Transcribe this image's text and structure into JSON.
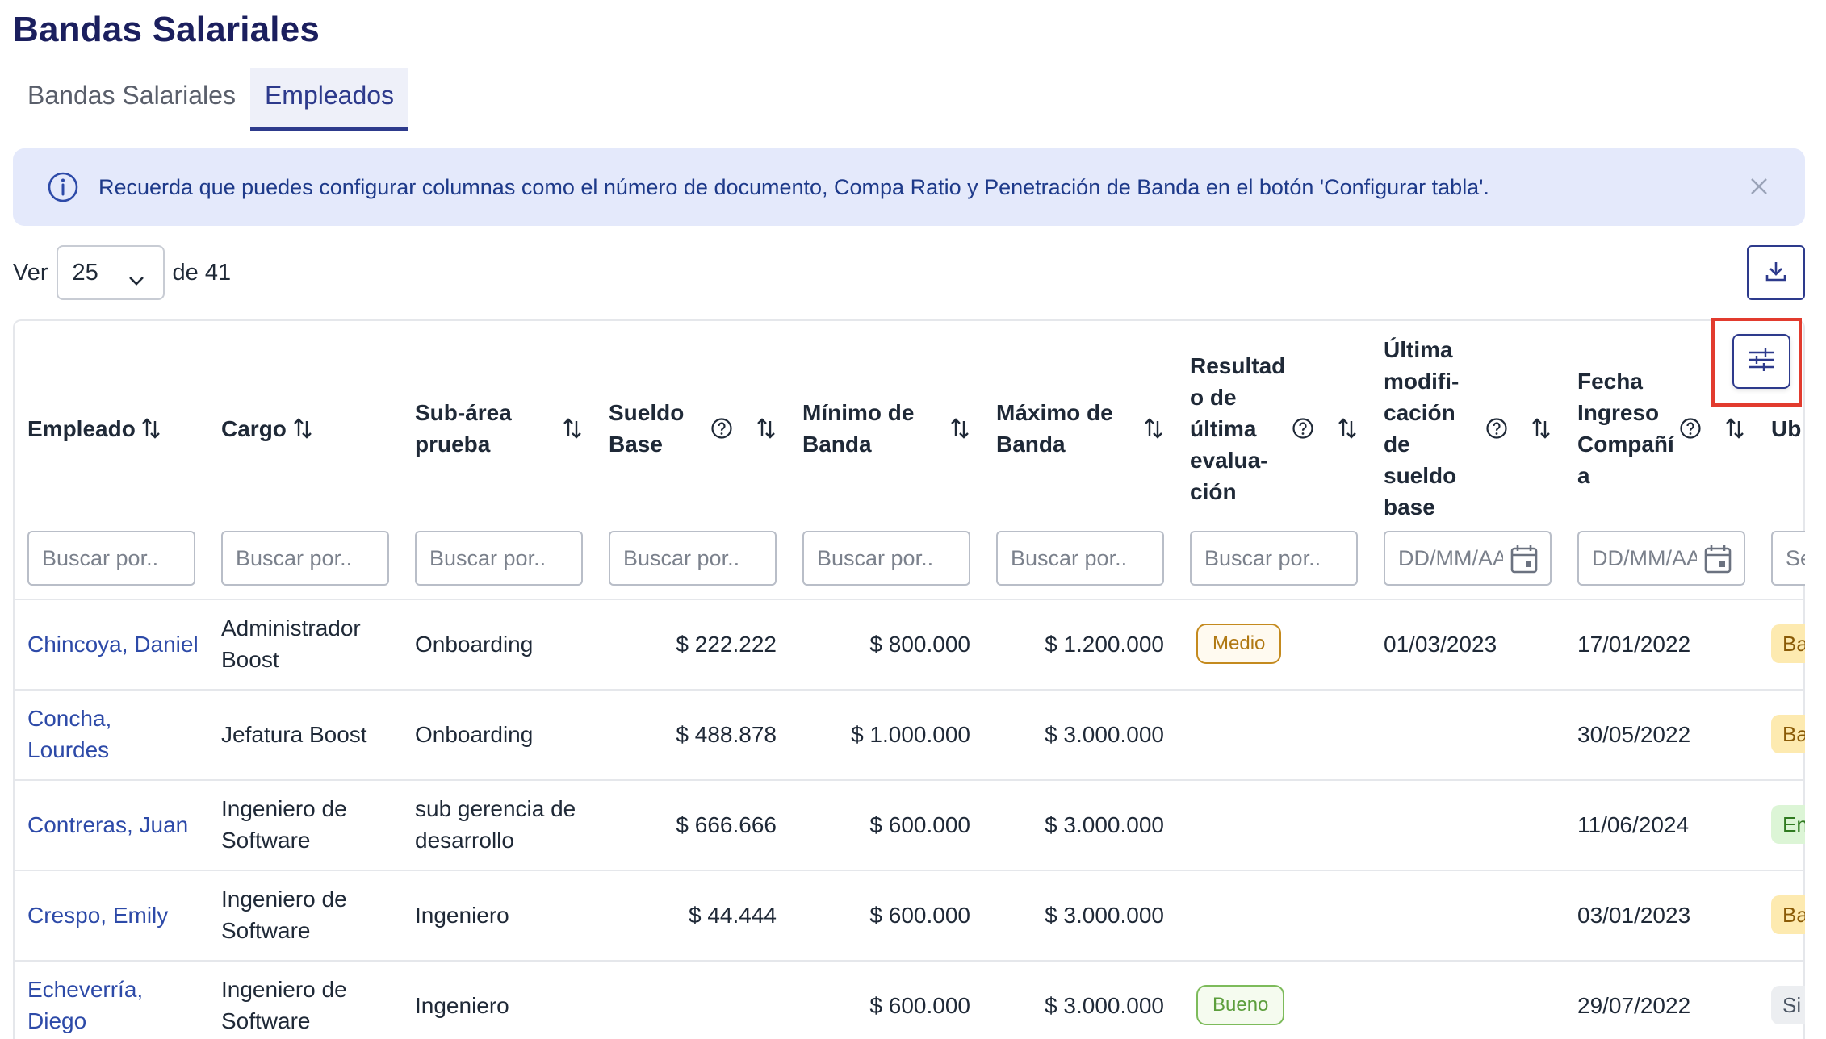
{
  "page": {
    "title": "Bandas Salariales"
  },
  "tabs": [
    {
      "label": "Bandas Salariales",
      "active": false
    },
    {
      "label": "Empleados",
      "active": true
    }
  ],
  "alert": {
    "text": "Recuerda que puedes configurar columnas como el número de documento, Compa Ratio y Penetración de Banda en el botón 'Configurar tabla'.",
    "icon": "info-icon"
  },
  "pager": {
    "prefix": "Ver",
    "page_size": "25",
    "suffix": "de 41"
  },
  "columns": [
    {
      "label_lines": [
        "Empleado"
      ]
    },
    {
      "label_lines": [
        "Cargo"
      ]
    },
    {
      "label_lines": [
        "Sub-área",
        "prueba"
      ]
    },
    {
      "label_lines": [
        "Sueldo",
        "Base"
      ]
    },
    {
      "label_lines": [
        "Mínimo de",
        "Banda"
      ]
    },
    {
      "label_lines": [
        "Máximo de",
        "Banda"
      ]
    },
    {
      "label_lines": [
        "Resultad",
        "o de",
        "última",
        "evalua-",
        "ción"
      ]
    },
    {
      "label_lines": [
        "Última",
        "modifi-",
        "cación",
        "de",
        "sueldo",
        "base"
      ]
    },
    {
      "label_lines": [
        "Fecha",
        "Ingreso",
        "Compañí",
        "a"
      ]
    },
    {
      "label_lines": [
        "Ubi"
      ]
    }
  ],
  "filters": {
    "text_placeholder": "Buscar por..",
    "date_placeholder": "DD/MM/AAAA",
    "last_placeholder": "Se"
  },
  "rows": [
    {
      "empleado": [
        "Chincoya, Daniel"
      ],
      "cargo": [
        "Administrador",
        "Boost"
      ],
      "subarea": [
        "Onboarding"
      ],
      "sueldo": "$ 222.222",
      "minimo": "$ 800.000",
      "maximo": "$ 1.200.000",
      "resultado": "Medio",
      "ultima_mod": "01/03/2023",
      "fecha_ingreso": "17/01/2022",
      "ubi": "Ba",
      "ubi_color": "amber"
    },
    {
      "empleado": [
        "Concha,",
        "Lourdes"
      ],
      "cargo": [
        "Jefatura Boost"
      ],
      "subarea": [
        "Onboarding"
      ],
      "sueldo": "$ 488.878",
      "minimo": "$ 1.000.000",
      "maximo": "$ 3.000.000",
      "resultado": "",
      "ultima_mod": "",
      "fecha_ingreso": "30/05/2022",
      "ubi": "Ba",
      "ubi_color": "amber"
    },
    {
      "empleado": [
        "Contreras, Juan"
      ],
      "cargo": [
        "Ingeniero de",
        "Software"
      ],
      "subarea": [
        "sub gerencia de",
        "desarrollo"
      ],
      "sueldo": "$ 666.666",
      "minimo": "$ 600.000",
      "maximo": "$ 3.000.000",
      "resultado": "",
      "ultima_mod": "",
      "fecha_ingreso": "11/06/2024",
      "ubi": "En",
      "ubi_color": "green"
    },
    {
      "empleado": [
        "Crespo, Emily"
      ],
      "cargo": [
        "Ingeniero de",
        "Software"
      ],
      "subarea": [
        "Ingeniero"
      ],
      "sueldo": "$ 44.444",
      "minimo": "$ 600.000",
      "maximo": "$ 3.000.000",
      "resultado": "",
      "ultima_mod": "",
      "fecha_ingreso": "03/01/2023",
      "ubi": "Ba",
      "ubi_color": "amber"
    },
    {
      "empleado": [
        "Echeverría,",
        "Diego"
      ],
      "cargo": [
        "Ingeniero de",
        "Software"
      ],
      "subarea": [
        "Ingeniero"
      ],
      "sueldo": "",
      "minimo": "$ 600.000",
      "maximo": "$ 3.000.000",
      "resultado": "Bueno",
      "ultima_mod": "",
      "fecha_ingreso": "29/07/2022",
      "ubi": "Si",
      "ubi_color": "gray"
    }
  ],
  "colors": {
    "brand": "#2d3a8c",
    "title": "#1b1f5e",
    "alert_bg": "#e4e9fb",
    "highlight": "#e23b2e"
  }
}
